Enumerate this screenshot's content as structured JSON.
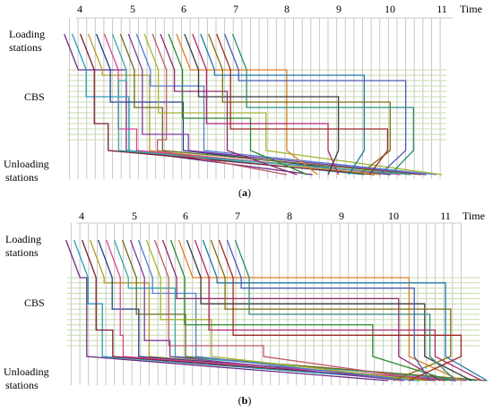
{
  "panels": [
    {
      "id": "a",
      "caption": "(a)",
      "caption_letter": "a",
      "time_label": "Time",
      "ticks": [
        "4",
        "5",
        "6",
        "7",
        "8",
        "9",
        "10",
        "11"
      ],
      "row_labels": {
        "top_line1": "Loading",
        "top_line2": "stations",
        "middle": "CBS",
        "bottom_line1": "Unloading",
        "bottom_line2": "stations"
      },
      "start_time": 3.7,
      "start_step": 0.155,
      "load_offset": 0.27,
      "bus_levels": 14,
      "series_count": 22,
      "dropoff_times": [
        4.9,
        4.95,
        4.55,
        5.35,
        6.0,
        5.1,
        4.75,
        5.6,
        6.1,
        6.4,
        7.6,
        5.5,
        6.85,
        7.3,
        8.0,
        9.0,
        8.8,
        9.5,
        10.0,
        9.95,
        10.3,
        10.45
      ],
      "unload_times": [
        8.5,
        9.5,
        9.7,
        9.8,
        10.0,
        10.2,
        10.4,
        10.6,
        10.7,
        10.9,
        11.0,
        8.0,
        8.2,
        8.4,
        8.6,
        8.8,
        9.0,
        9.2,
        9.4,
        9.6,
        9.8,
        10.0
      ]
    },
    {
      "id": "b",
      "caption": "(b)",
      "caption_letter": "b",
      "time_label": "Time",
      "ticks": [
        "4",
        "5",
        "6",
        "7",
        "8",
        "9",
        "10",
        "11"
      ],
      "row_labels": {
        "top_line1": "Loading",
        "top_line2": "stations",
        "middle": "CBS",
        "bottom_line1": "Unloading",
        "bottom_line2": "stations"
      },
      "start_time": 3.7,
      "start_step": 0.155,
      "load_offset": 0.27,
      "bus_levels": 14,
      "series_count": 22,
      "dropoff_times": [
        4.1,
        4.4,
        4.6,
        5.3,
        5.1,
        4.8,
        5.8,
        6.0,
        5.7,
        6.2,
        6.5,
        7.5,
        10.1,
        9.6,
        10.3,
        10.6,
        10.8,
        11.0,
        11.1,
        11.3,
        10.4,
        10.7
      ],
      "unload_times": [
        9.9,
        10.5,
        10.8,
        11.0,
        11.2,
        11.4,
        11.6,
        11.8,
        10.2,
        10.4,
        10.6,
        10.8,
        10.9,
        11.1,
        11.3,
        11.5,
        11.7,
        11.8,
        10.0,
        10.3,
        10.7,
        11.2
      ]
    }
  ],
  "colors": {
    "grid": "#c8c8c8",
    "bus": "#c7dcae",
    "series": [
      "#6a2c82",
      "#2a9db8",
      "#7a1e2e",
      "#b59a2a",
      "#1e3f8a",
      "#d9438f",
      "#3aa7a3",
      "#6b6b1e",
      "#7e3d9c",
      "#4f7fd0",
      "#a4b52e",
      "#c05a6a",
      "#8e2a6a",
      "#2d8a2d",
      "#dd7f1f",
      "#3b3b3b",
      "#b0286a",
      "#1f7aa6",
      "#7c6d12",
      "#9c2b22",
      "#4d5bb0",
      "#2a8c7a"
    ]
  }
}
